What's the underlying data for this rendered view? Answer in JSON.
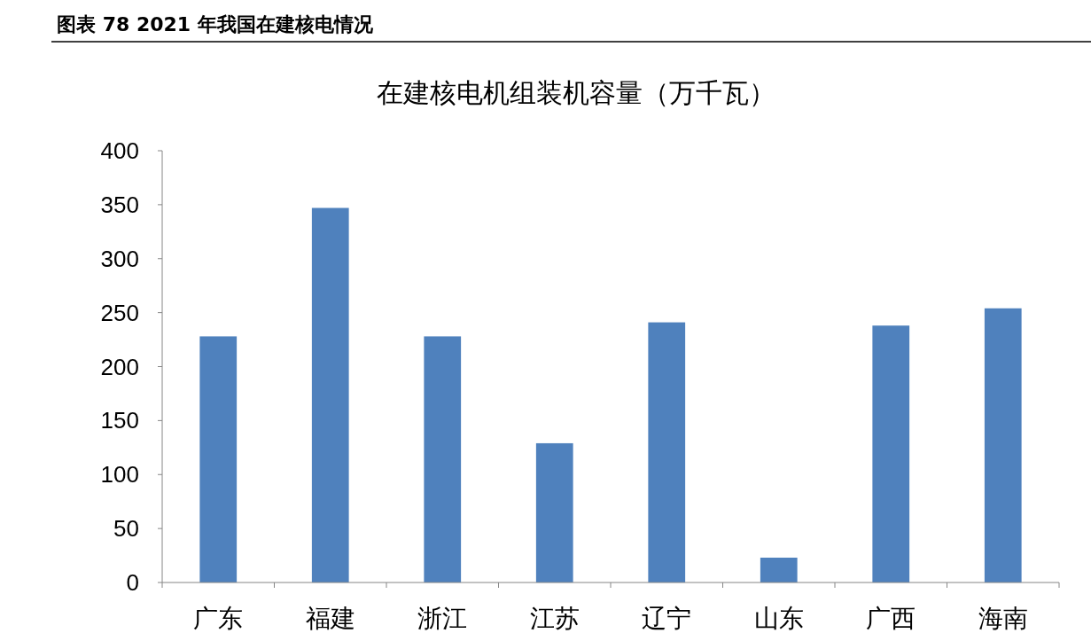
{
  "chart_data": {
    "type": "bar",
    "title": "图表 78 2021 年我国在建核电情况",
    "subtitle": "在建核电机组装机容量（万千瓦）",
    "categories": [
      "广东",
      "福建",
      "浙江",
      "江苏",
      "辽宁",
      "山东",
      "广西",
      "海南"
    ],
    "values": [
      228,
      347,
      228,
      129,
      241,
      23,
      238,
      254
    ],
    "color": "#4f81bd",
    "ylim": [
      0,
      400
    ],
    "yticks": [
      0,
      50,
      100,
      150,
      200,
      250,
      300,
      350,
      400
    ]
  }
}
